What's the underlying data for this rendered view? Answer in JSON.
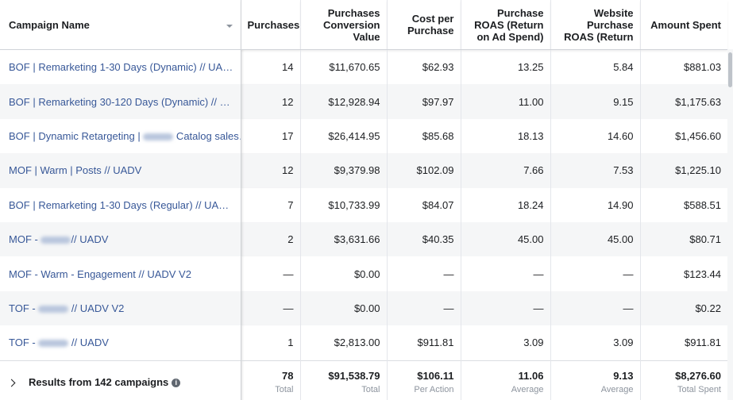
{
  "table": {
    "headers": [
      "Campaign Name",
      "Purchases",
      "Purchases Conversion Value",
      "Cost per Purchase",
      "Purchase ROAS (Return on Ad Spend)",
      "Website Purchase ROAS (Return",
      "Amount Spent"
    ],
    "rows": [
      [
        "BOF | Remarketing 1-30 Days (Dynamic) // UA…",
        "14",
        "$11,670.65",
        "$62.93",
        "13.25",
        "5.84",
        "$881.03"
      ],
      [
        "BOF | Remarketing 30-120 Days (Dynamic) // …",
        "12",
        "$12,928.94",
        "$97.97",
        "11.00",
        "9.15",
        "$1,175.63"
      ],
      [
        {
          "before": "BOF | Dynamic Retargeting | ",
          "after": " Catalog sales…"
        },
        "17",
        "$26,414.95",
        "$85.68",
        "18.13",
        "14.60",
        "$1,456.60"
      ],
      [
        "MOF | Warm | Posts // UADV",
        "12",
        "$9,379.98",
        "$102.09",
        "7.66",
        "7.53",
        "$1,225.10"
      ],
      [
        "BOF | Remarketing 1-30 Days (Regular) // UA…",
        "7",
        "$10,733.99",
        "$84.07",
        "18.24",
        "14.90",
        "$588.51"
      ],
      [
        {
          "before": "MOF - ",
          "after": "// UADV"
        },
        "2",
        "$3,631.66",
        "$40.35",
        "45.00",
        "45.00",
        "$80.71"
      ],
      [
        "MOF - Warm - Engagement // UADV V2",
        "—",
        "$0.00",
        "—",
        "—",
        "—",
        "$123.44"
      ],
      [
        {
          "before": "TOF - ",
          "after": " // UADV V2"
        },
        "—",
        "$0.00",
        "—",
        "—",
        "—",
        "$0.22"
      ],
      [
        {
          "before": "TOF - ",
          "after": " // UADV"
        },
        "1",
        "$2,813.00",
        "$911.81",
        "3.09",
        "3.09",
        "$911.81"
      ]
    ],
    "footer": {
      "label": "Results from 142 campaigns",
      "cells": [
        {
          "value": "78",
          "note": "Total"
        },
        {
          "value": "$91,538.79",
          "note": "Total"
        },
        {
          "value": "$106.11",
          "note": "Per Action"
        },
        {
          "value": "11.06",
          "note": "Average"
        },
        {
          "value": "9.13",
          "note": "Average"
        },
        {
          "value": "$8,276.60",
          "note": "Total Spent"
        }
      ]
    }
  }
}
